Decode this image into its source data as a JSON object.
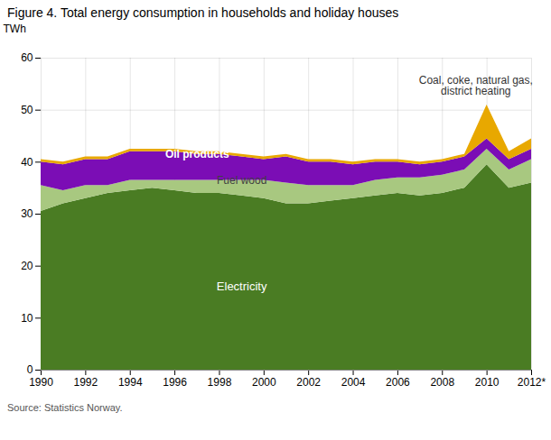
{
  "chart_data": {
    "type": "area",
    "stacked": true,
    "title": "Figure 4. Total energy consumption in households and holiday houses",
    "caption": "Source: Statistics Norway.",
    "ylabel": "TWh",
    "x": [
      1990,
      1991,
      1992,
      1993,
      1994,
      1995,
      1996,
      1997,
      1998,
      1999,
      2000,
      2001,
      2002,
      2003,
      2004,
      2005,
      2006,
      2007,
      2008,
      2009,
      2010,
      2011,
      2012
    ],
    "series": [
      {
        "name": "Electricity",
        "color": "#4a7c23",
        "values": [
          30.5,
          32.0,
          33.0,
          34.0,
          34.5,
          35.0,
          34.5,
          34.0,
          34.0,
          33.5,
          33.0,
          32.0,
          32.0,
          32.5,
          33.0,
          33.5,
          34.0,
          33.5,
          34.0,
          35.0,
          39.5,
          35.0,
          36.0
        ]
      },
      {
        "name": "Fuel wood",
        "color": "#a8c880",
        "values": [
          5.0,
          2.5,
          2.5,
          1.5,
          2.0,
          1.5,
          2.0,
          2.5,
          2.5,
          3.0,
          3.5,
          4.0,
          3.5,
          3.0,
          2.5,
          3.0,
          3.0,
          3.5,
          3.5,
          3.5,
          3.0,
          3.5,
          4.5
        ]
      },
      {
        "name": "Oil products",
        "color": "#7b0db5",
        "values": [
          4.5,
          5.0,
          5.0,
          5.0,
          5.5,
          5.5,
          5.5,
          5.0,
          5.0,
          4.5,
          4.0,
          5.0,
          4.5,
          4.5,
          4.0,
          3.5,
          3.0,
          2.5,
          2.5,
          2.5,
          2.0,
          2.0,
          2.0
        ]
      },
      {
        "name": "Coal, coke, natural gas,\ndistrict heating",
        "color": "#e8a800",
        "values": [
          0.5,
          0.5,
          0.5,
          0.5,
          0.5,
          0.5,
          0.5,
          0.5,
          0.5,
          0.5,
          0.5,
          0.5,
          0.5,
          0.5,
          0.5,
          0.5,
          0.5,
          0.5,
          0.5,
          0.5,
          6.5,
          1.5,
          2.0
        ]
      }
    ],
    "annotations": [
      {
        "text": "Electricity",
        "x": 1999,
        "y": 16,
        "color": "#ffffff"
      },
      {
        "text": "Fuel wood",
        "x": 1999,
        "y": 36.5,
        "color": "#404040"
      },
      {
        "text": "Oil products",
        "x": 1997,
        "y": 41.5,
        "color": "#ffffff"
      },
      {
        "text": "Coal, coke, natural gas,\ndistrict heating",
        "x": 2009.5,
        "y": 53.0,
        "color": "#333333"
      }
    ],
    "xlim": [
      1990,
      2012
    ],
    "xticks": [
      1990,
      1992,
      1994,
      1996,
      1998,
      2000,
      2002,
      2004,
      2006,
      2008,
      2010,
      {
        "value": 2012,
        "label": "2012*"
      }
    ],
    "ylim": [
      0,
      60
    ],
    "yticks": [
      0,
      10,
      20,
      30,
      40,
      50,
      60
    ],
    "grid": true
  }
}
